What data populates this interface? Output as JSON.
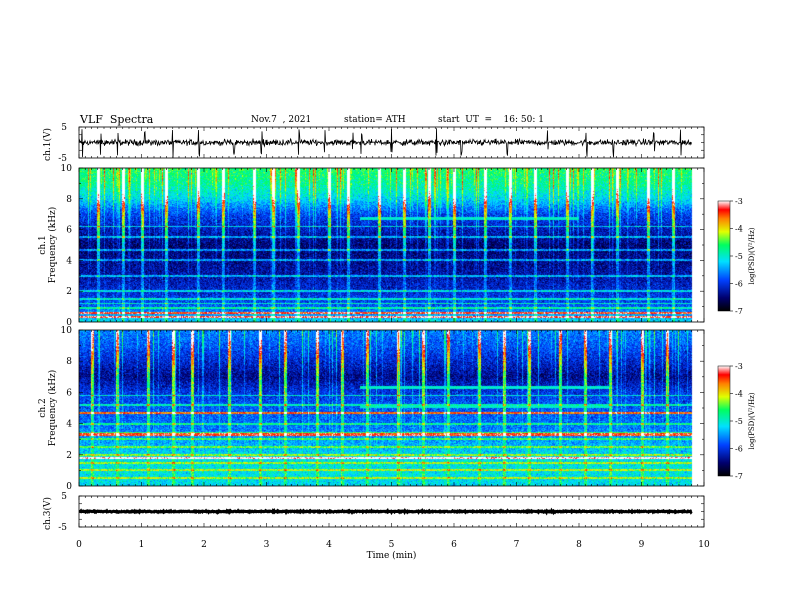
{
  "header": {
    "title": "VLF  Spectra",
    "date": "Nov.7  , 2021",
    "station": "station= ATH",
    "start": "start  UT  =    16: 50: 1"
  },
  "chart_data": [
    {
      "type": "line",
      "panel": "ch1-waveform",
      "ylabel": "ch.1(V)",
      "yticks": [
        "5",
        "-5"
      ],
      "ylim": [
        -5,
        5
      ],
      "xlim": [
        0,
        10
      ],
      "trace_end_min": 9.8,
      "baseline": 0,
      "noise_amplitude": 0.8,
      "spike_times_min": [
        0.05,
        0.35,
        0.62,
        1.05,
        1.5,
        1.92,
        2.48,
        2.92,
        3.52,
        3.93,
        4.38,
        4.52,
        5.0,
        5.72,
        6.12,
        6.85,
        7.5,
        8.12,
        8.55,
        9.2,
        9.63
      ]
    },
    {
      "type": "heatmap",
      "panel": "ch1-spectrogram",
      "ylabel": "ch.1\nFrequency  (kHz)",
      "yticks": [
        "0",
        "2",
        "4",
        "6",
        "8",
        "10"
      ],
      "ylim": [
        0,
        10
      ],
      "xlim": [
        0,
        10
      ],
      "data_end_min": 9.8,
      "colorbar": {
        "label": "log(PSD)(V²/Hz)",
        "ticks": [
          "-3",
          "-4",
          "-5",
          "-6",
          "-7"
        ],
        "range": [
          -7,
          -3
        ]
      },
      "profile_khz": [
        0,
        1,
        2,
        3,
        4,
        5,
        6,
        7,
        8,
        9,
        10
      ],
      "profile_log_psd": [
        -5.2,
        -5.8,
        -6.1,
        -6.3,
        -6.4,
        -6.5,
        -6.2,
        -5.9,
        -5.2,
        -4.8,
        -4.6
      ],
      "constant_lines_khz": [
        0.3,
        0.6,
        0.9,
        1.2,
        1.5,
        2.0,
        3.0,
        4.0,
        4.7,
        5.5,
        6.2
      ],
      "bright_lines_khz": [
        0.35,
        0.6
      ],
      "stepped_tones": [
        {
          "start_min": 4.5,
          "end_min": 8.0,
          "khz": 6.7
        }
      ],
      "sferic_times_min": [
        0.3,
        0.7,
        1.0,
        1.4,
        1.9,
        2.3,
        2.8,
        3.1,
        3.5,
        4.0,
        4.3,
        4.8,
        5.2,
        5.6,
        6.0,
        6.5,
        6.9,
        7.3,
        7.8,
        8.2,
        8.6,
        9.1,
        9.5
      ]
    },
    {
      "type": "heatmap",
      "panel": "ch2-spectrogram",
      "ylabel": "ch.2\nFrequency  (kHz)",
      "yticks": [
        "0",
        "2",
        "4",
        "6",
        "8",
        "10"
      ],
      "ylim": [
        0,
        10
      ],
      "xlim": [
        0,
        10
      ],
      "data_end_min": 9.8,
      "colorbar": {
        "label": "log(PSD)(V²/Hz)",
        "ticks": [
          "-3",
          "-4",
          "-5",
          "-6",
          "-7"
        ],
        "range": [
          -7,
          -3
        ]
      },
      "profile_khz": [
        0,
        1,
        2,
        3,
        4,
        5,
        6,
        7,
        8,
        9,
        10
      ],
      "profile_log_psd": [
        -5.2,
        -5.1,
        -5.2,
        -5.5,
        -5.7,
        -5.8,
        -6.0,
        -6.4,
        -6.1,
        -5.8,
        -5.6
      ],
      "constant_lines_khz": [
        0.5,
        1.0,
        1.5,
        2.0,
        2.5,
        3.0,
        3.4,
        4.0,
        5.2,
        5.8
      ],
      "bright_lines_khz": [
        1.8,
        3.3,
        4.7
      ],
      "stepped_tones": [
        {
          "start_min": 4.5,
          "end_min": 8.5,
          "khz": 6.3
        },
        {
          "start_min": 4.5,
          "end_min": 8.5,
          "khz": 5.1
        }
      ],
      "sferic_times_min": [
        0.2,
        0.6,
        1.1,
        1.5,
        1.8,
        2.4,
        2.9,
        3.3,
        3.8,
        4.2,
        4.6,
        5.1,
        5.5,
        5.9,
        6.4,
        6.8,
        7.2,
        7.7,
        8.1,
        8.5,
        9.0,
        9.4
      ]
    },
    {
      "type": "line",
      "panel": "ch3-waveform",
      "ylabel": "ch.3(V)",
      "yticks": [
        "5",
        "-5"
      ],
      "ylim": [
        -5,
        5
      ],
      "xlim": [
        0,
        10
      ],
      "trace_end_min": 9.8,
      "baseline": 0,
      "noise_amplitude": 0.15,
      "xlabel": "Time  (min)",
      "xticks": [
        "0",
        "1",
        "2",
        "3",
        "4",
        "5",
        "6",
        "7",
        "8",
        "9",
        "10"
      ]
    }
  ]
}
